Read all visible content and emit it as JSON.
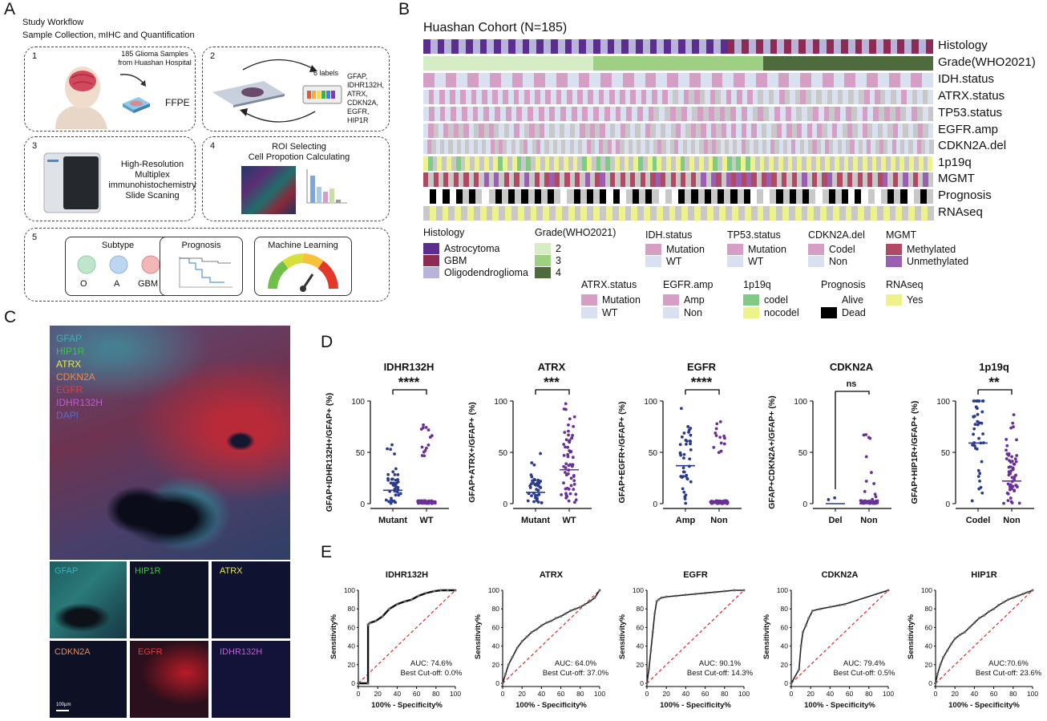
{
  "panels": {
    "A": "A",
    "B": "B",
    "C": "C",
    "D": "D",
    "E": "E"
  },
  "workflow": {
    "title1": "Study Workflow",
    "title2": "Sample Collection, mIHC and Quantification",
    "step1": {
      "num": "1",
      "line1": "185 Glioma Samples",
      "line2": "from Huashan Hospital",
      "ffpe": "FFPE"
    },
    "step2": {
      "num": "2",
      "labels_title": "6 labels",
      "labels": [
        "GFAP,",
        "IDHR132H,",
        "ATRX,",
        "CDKN2A,",
        "EGFR,",
        "HIP1R"
      ]
    },
    "step3": {
      "num": "3",
      "text": [
        "High-Resolution",
        "Multiplex",
        "immunohistochemistry",
        "Slide Scaning"
      ]
    },
    "step4": {
      "num": "4",
      "title1": "ROI Selecting",
      "title2": "Cell Propotion Calculating"
    },
    "step5": {
      "num": "5",
      "subtype": "Subtype",
      "subtype_items": [
        "O",
        "A",
        "GBM"
      ],
      "prognosis": "Prognosis",
      "ml": "Machine Learning"
    }
  },
  "cohort": {
    "title": "Huashan Cohort (N=185)",
    "tracks": [
      "Histology",
      "Grade(WHO2021)",
      "IDH.status",
      "ATRX.status",
      "TP53.status",
      "EGFR.amp",
      "CDKN2A.del",
      "1p19q",
      "MGMT",
      "Prognosis",
      "RNAseq"
    ],
    "legend": {
      "histology": {
        "title": "Histology",
        "items": [
          "Astrocytoma",
          "GBM",
          "Oligodendroglioma"
        ],
        "colors": [
          "#5b2d8e",
          "#8e2b55",
          "#b7b3d9"
        ]
      },
      "grade": {
        "title": "Grade(WHO2021)",
        "items": [
          "2",
          "3",
          "4"
        ],
        "colors": [
          "#d6ecc4",
          "#9dd083",
          "#4d6b3c"
        ]
      },
      "idh": {
        "title": "IDH.status",
        "items": [
          "Mutation",
          "WT"
        ],
        "colors": [
          "#d59ec5",
          "#d9e0ef"
        ]
      },
      "tp53": {
        "title": "TP53.status",
        "items": [
          "Mutation",
          "WT"
        ],
        "colors": [
          "#d59ec5",
          "#d9e0ef"
        ]
      },
      "cdkn2a": {
        "title": "CDKN2A.del",
        "items": [
          "Codel",
          "Non"
        ],
        "colors": [
          "#d59ec5",
          "#d9e0ef"
        ]
      },
      "mgmt": {
        "title": "MGMT",
        "items": [
          "Methylated",
          "Unmethylated"
        ],
        "colors": [
          "#b04a64",
          "#9a5fb0"
        ]
      },
      "atrx": {
        "title": "ATRX.status",
        "items": [
          "Mutation",
          "WT"
        ],
        "colors": [
          "#d59ec5",
          "#d9e0ef"
        ]
      },
      "egfr": {
        "title": "EGFR.amp",
        "items": [
          "Amp",
          "Non"
        ],
        "colors": [
          "#d59ec5",
          "#d9e0ef"
        ]
      },
      "p1p19q": {
        "title": "1p19q",
        "items": [
          "codel",
          "nocodel"
        ],
        "colors": [
          "#7fcb85",
          "#eef28a"
        ]
      },
      "prognosis": {
        "title": "Prognosis",
        "items": [
          "Alive",
          "Dead"
        ],
        "colors": [
          "#ffffff",
          "#000000"
        ]
      },
      "rnaseq": {
        "title": "RNAseq",
        "items": [
          "Yes"
        ],
        "colors": [
          "#eef28a"
        ]
      }
    }
  },
  "mihc": {
    "channels": [
      "GFAP",
      "HIP1R",
      "ATRX",
      "CDKN2A",
      "EGFR",
      "IDHR132H",
      "DAPI"
    ],
    "channel_colors": [
      "#2fb8b8",
      "#33cc33",
      "#e8e84a",
      "#f08a4b",
      "#e83a3a",
      "#c558d8",
      "#5a6bd8"
    ],
    "tiles": [
      "GFAP",
      "HIP1R",
      "ATRX",
      "CDKN2A",
      "EGFR",
      "IDHR132H"
    ],
    "scale": "100μm"
  },
  "chart_data": [
    {
      "type": "scatter",
      "title": "IDHR132H",
      "sig": "****",
      "ylabel": "GFAP+IDHR132H+/GFAP+ (%)",
      "categories": [
        "Mutant",
        "WT"
      ],
      "medians": [
        13,
        1
      ],
      "ylim": [
        0,
        100
      ],
      "yticks": [
        0,
        50,
        100
      ]
    },
    {
      "type": "scatter",
      "title": "ATRX",
      "sig": "***",
      "ylabel": "GFAP+ATRX+/GFAP+ (%)",
      "categories": [
        "Mutant",
        "WT"
      ],
      "medians": [
        11,
        33
      ],
      "ylim": [
        0,
        100
      ],
      "yticks": [
        0,
        50,
        100
      ]
    },
    {
      "type": "scatter",
      "title": "EGFR",
      "sig": "****",
      "ylabel": "GFAP+EGFR+/GFAP+ (%)",
      "categories": [
        "Amp",
        "Non"
      ],
      "medians": [
        37,
        2
      ],
      "ylim": [
        0,
        100
      ],
      "yticks": [
        0,
        50,
        100
      ]
    },
    {
      "type": "scatter",
      "title": "CDKN2A",
      "sig": "ns",
      "ylabel": "GFAP+CDKN2A+/GFAP+ (%)",
      "categories": [
        "Del",
        "Non"
      ],
      "medians": [
        0,
        0
      ],
      "ylim": [
        0,
        100
      ],
      "yticks": [
        0,
        50,
        100
      ]
    },
    {
      "type": "scatter",
      "title": "1p19q",
      "sig": "**",
      "ylabel": "GFAP+HIP1R+/GFAP+ (%)",
      "categories": [
        "Codel",
        "Non"
      ],
      "medians": [
        59,
        22
      ],
      "ylim": [
        0,
        100
      ],
      "yticks": [
        0,
        50,
        100
      ]
    },
    {
      "type": "line",
      "title": "IDHR132H",
      "xlabel": "100% - Specificity%",
      "ylabel": "Sensitivity%",
      "auc": "AUC: 74.6%",
      "cutoff": "Best Cut-off: 0.0%",
      "x": [
        0,
        10,
        10,
        12,
        18,
        25,
        32,
        40,
        48,
        55,
        62,
        70,
        78,
        85,
        92,
        100
      ],
      "y": [
        0,
        0,
        63,
        65,
        67,
        72,
        80,
        85,
        88,
        90,
        94,
        97,
        99,
        100,
        100,
        100
      ]
    },
    {
      "type": "line",
      "title": "ATRX",
      "xlabel": "100% - Specificity%",
      "ylabel": "Sensitivity%",
      "auc": "AUC: 64.0%",
      "cutoff": "Best Cut-off: 37.0%",
      "x": [
        0,
        3,
        6,
        10,
        15,
        20,
        25,
        30,
        35,
        40,
        45,
        50,
        55,
        60,
        65,
        70,
        75,
        80,
        85,
        90,
        95,
        100
      ],
      "y": [
        0,
        10,
        20,
        28,
        38,
        45,
        50,
        55,
        58,
        62,
        65,
        67,
        70,
        72,
        75,
        78,
        80,
        82,
        85,
        88,
        92,
        100
      ]
    },
    {
      "type": "line",
      "title": "EGFR",
      "xlabel": "100% - Specificity%",
      "ylabel": "Sensitivity%",
      "auc": "AUC: 90.1%",
      "cutoff": "Best Cut-off: 14.3%",
      "x": [
        0,
        2,
        4,
        6,
        8,
        10,
        12,
        15,
        20,
        30,
        40,
        50,
        60,
        70,
        80,
        90,
        100
      ],
      "y": [
        0,
        15,
        35,
        55,
        75,
        88,
        90,
        92,
        93,
        94,
        95,
        96,
        97,
        98,
        99,
        100,
        100
      ]
    },
    {
      "type": "line",
      "title": "CDKN2A",
      "xlabel": "100% - Specificity%",
      "ylabel": "Sensitivity%",
      "auc": "AUC: 79.4%",
      "cutoff": "Best Cut-off: 0.5%",
      "x": [
        0,
        8,
        10,
        12,
        15,
        18,
        22,
        30,
        40,
        50,
        55,
        100
      ],
      "y": [
        0,
        15,
        40,
        55,
        62,
        70,
        78,
        80,
        82,
        84,
        85,
        100
      ]
    },
    {
      "type": "line",
      "title": "HIP1R",
      "xlabel": "100% - Specificity%",
      "ylabel": "Sensitivity%",
      "auc": "AUC:70.6%",
      "cutoff": "Best Cut-off: 23.6%",
      "x": [
        0,
        2,
        5,
        8,
        12,
        16,
        20,
        25,
        30,
        35,
        40,
        45,
        50,
        55,
        60,
        65,
        70,
        75,
        80,
        85,
        90,
        95,
        100
      ],
      "y": [
        0,
        10,
        20,
        28,
        35,
        42,
        48,
        52,
        55,
        60,
        65,
        70,
        73,
        77,
        80,
        84,
        87,
        90,
        92,
        94,
        96,
        98,
        100
      ]
    }
  ]
}
